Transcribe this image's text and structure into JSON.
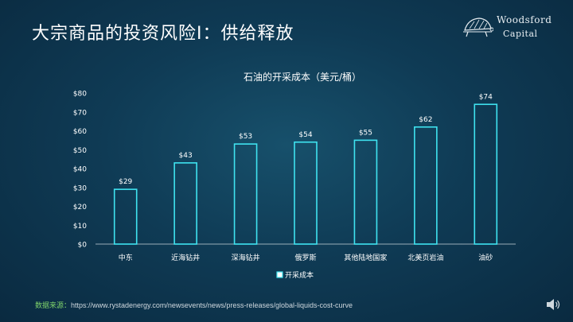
{
  "slide": {
    "title": "大宗商品的投资风险I：供给释放",
    "logo_top": "Woodsford",
    "logo_bottom": "Capital",
    "source_label": "数据来源：",
    "source_url": "https://www.rystadenergy.com/newsevents/news/press-releases/global-liquids-cost-curve"
  },
  "colors": {
    "bar_stroke": "#3fe3f0",
    "bar_fill": "#ffffff",
    "axis_text": "#ffffff"
  },
  "chart_data": {
    "type": "bar",
    "title": "石油的开采成本（美元/桶）",
    "xlabel": "",
    "ylabel": "",
    "categories": [
      "中东",
      "近海钻井",
      "深海钻井",
      "俄罗斯",
      "其他陆地国家",
      "北美页岩油",
      "油砂"
    ],
    "series": [
      {
        "name": "开采成本",
        "values": [
          29,
          43,
          53,
          54,
          55,
          62,
          74
        ]
      }
    ],
    "value_labels": [
      "$29",
      "$43",
      "$53",
      "$54",
      "$55",
      "$62",
      "$74"
    ],
    "y_ticks": [
      "$0",
      "$10",
      "$20",
      "$30",
      "$40",
      "$50",
      "$60",
      "$70",
      "$80"
    ],
    "ylim": [
      0,
      80
    ],
    "grid": false,
    "legend": "bottom-center"
  }
}
